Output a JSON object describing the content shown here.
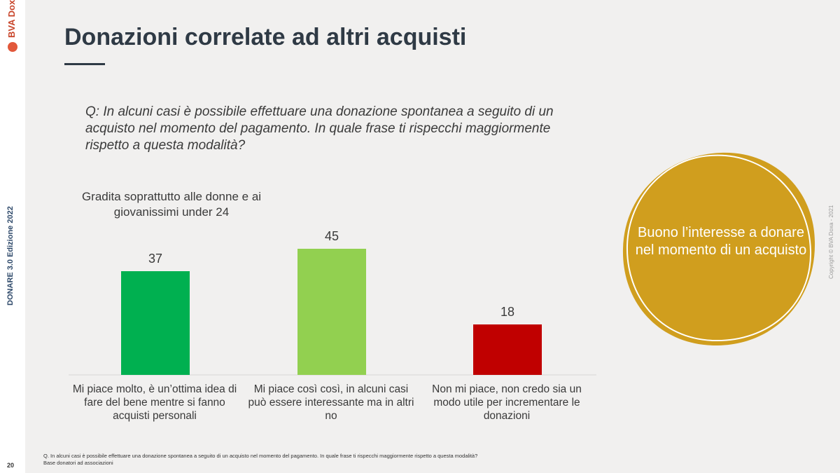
{
  "brand": {
    "logo_text": "BVA Doxa",
    "edition": "DONARE 3.0 Edizione 2022",
    "copyright": "Copyright © BVA Doxa - 2021",
    "accent": "#c8452a"
  },
  "page_number": "20",
  "title": "Donazioni correlate ad altri acquisti",
  "question": "Q: In alcuni casi è possibile effettuare una donazione spontanea a seguito di un acquisto nel momento del pagamento. In quale frase ti rispecchi maggiormente rispetto a questa modalità?",
  "subtitle": "Gradita soprattutto alle donne e ai giovanissimi under 24",
  "chart_data": {
    "type": "bar",
    "categories": [
      "Mi piace molto, è un’ottima idea di fare del bene mentre si fanno acquisti personali",
      "Mi piace così così, in alcuni casi può essere interessante ma in altri no",
      "Non mi piace, non credo sia un modo utile per incrementare le donazioni"
    ],
    "values": [
      37,
      45,
      18
    ],
    "value_labels": [
      "37",
      "45",
      "18"
    ],
    "colors": [
      "#00b050",
      "#92d050",
      "#c00000"
    ],
    "ylim": [
      0,
      45
    ],
    "grid": false,
    "title": "",
    "xlabel": "",
    "ylabel": ""
  },
  "highlight": {
    "text": "Buono l’interesse a donare nel momento di un acquisto",
    "fill": "#d09e1e"
  },
  "footnote": {
    "line1": "Q. In alcuni casi è possibile effettuare una donazione spontanea a seguito di un acquisto nel momento del pagamento. In quale frase ti rispecchi maggiormente rispetto a questa modalità?",
    "line2": "Base donatori ad associazioni"
  }
}
